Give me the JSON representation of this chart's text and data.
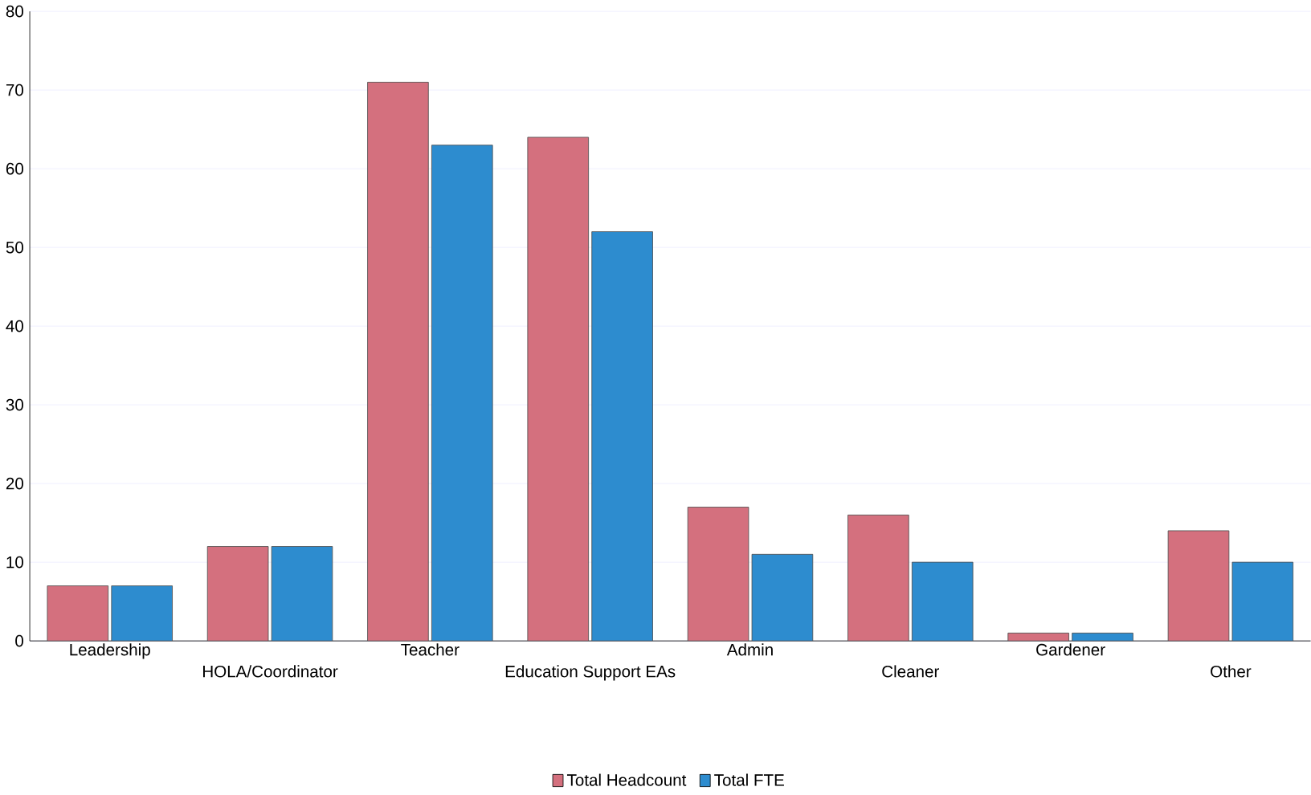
{
  "chart_data": {
    "type": "bar",
    "categories": [
      "Leadership",
      "HOLA/Coordinator",
      "Teacher",
      "Education Support EAs",
      "Admin",
      "Cleaner",
      "Gardener",
      "Other"
    ],
    "series": [
      {
        "name": "Total Headcount",
        "color": "#d4707e",
        "values": [
          7,
          12,
          71,
          64,
          17,
          16,
          1,
          14
        ]
      },
      {
        "name": "Total FTE",
        "color": "#2d8ccf",
        "values": [
          7,
          12,
          63,
          52,
          11,
          10,
          1,
          10
        ]
      }
    ],
    "ylim": [
      0,
      80
    ],
    "yticks": [
      0,
      10,
      20,
      30,
      40,
      50,
      60,
      70,
      80
    ],
    "grid": "y",
    "legend": "bottom"
  }
}
